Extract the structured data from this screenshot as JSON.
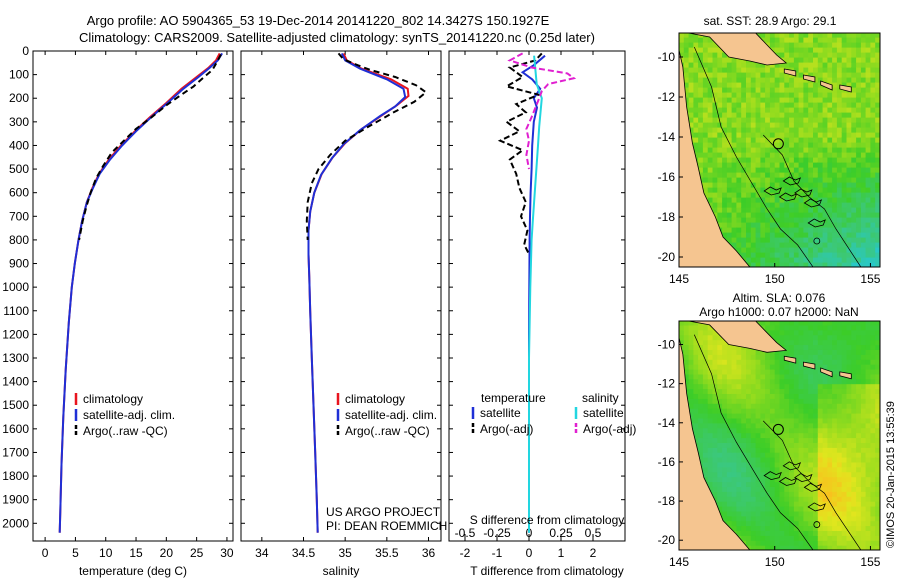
{
  "header": {
    "title_line1": "Argo profile: AO 5904365_53 19-Dec-2014 20141220_802 14.3427S 150.1927E",
    "title_line2": "Climatology: CARS2009. Satellite-adjusted climatology: synTS_20141220.nc (0.25d later)"
  },
  "colors": {
    "climatology": "#e8141e",
    "satellite": "#1f2fd6",
    "argo": "#000000",
    "satellite_salinity": "#22d6e0",
    "argo_salinity": "#e020d0",
    "land": "#f5c590"
  },
  "chart_data": [
    {
      "type": "line",
      "name": "temperature-profile",
      "xlabel": "temperature (deg C)",
      "xlim": [
        -2,
        31
      ],
      "ylim": [
        0,
        2075
      ],
      "xticks": [
        0,
        5,
        10,
        15,
        20,
        25,
        30
      ],
      "yticks": [
        0,
        100,
        200,
        300,
        400,
        500,
        600,
        700,
        800,
        900,
        1000,
        1100,
        1200,
        1300,
        1400,
        1500,
        1600,
        1700,
        1800,
        1900,
        2000
      ],
      "legend": [
        "climatology",
        "satellite-adj. clim.",
        "Argo(..raw -QC)"
      ],
      "series": [
        {
          "name": "climatology",
          "color": "#e8141e",
          "dash": "",
          "points": [
            [
              28.8,
              10
            ],
            [
              28.2,
              40
            ],
            [
              27,
              70
            ],
            [
              25,
              110
            ],
            [
              22.5,
              160
            ],
            [
              20,
              220
            ],
            [
              17.3,
              280
            ],
            [
              14.8,
              340
            ],
            [
              12.5,
              400
            ],
            [
              10.5,
              460
            ],
            [
              8.9,
              520
            ],
            [
              7.8,
              580
            ],
            [
              6.9,
              640
            ],
            [
              6.1,
              720
            ],
            [
              5.5,
              800
            ],
            [
              4.9,
              900
            ],
            [
              4.4,
              1000
            ],
            [
              3.9,
              1150
            ],
            [
              3.4,
              1350
            ],
            [
              3.0,
              1550
            ],
            [
              2.7,
              1750
            ],
            [
              2.5,
              1950
            ],
            [
              2.4,
              2040
            ]
          ]
        },
        {
          "name": "satellite-adj. clim.",
          "color": "#1f2fd6",
          "dash": "",
          "points": [
            [
              29.2,
              10
            ],
            [
              28.5,
              40
            ],
            [
              27.2,
              70
            ],
            [
              25.3,
              110
            ],
            [
              22.8,
              160
            ],
            [
              20.2,
              220
            ],
            [
              17.5,
              280
            ],
            [
              15,
              340
            ],
            [
              12.7,
              400
            ],
            [
              10.7,
              460
            ],
            [
              9,
              520
            ],
            [
              7.9,
              580
            ],
            [
              6.9,
              640
            ],
            [
              6.1,
              720
            ],
            [
              5.5,
              800
            ],
            [
              4.9,
              900
            ],
            [
              4.4,
              1000
            ],
            [
              3.9,
              1150
            ],
            [
              3.4,
              1350
            ],
            [
              3.0,
              1550
            ],
            [
              2.7,
              1750
            ],
            [
              2.5,
              1950
            ],
            [
              2.4,
              2040
            ]
          ]
        },
        {
          "name": "Argo(..raw -QC)",
          "color": "#000000",
          "dash": "6,4",
          "points": [
            [
              29,
              15
            ],
            [
              28.4,
              45
            ],
            [
              27.6,
              80
            ],
            [
              26,
              115
            ],
            [
              24.5,
              150
            ],
            [
              22.2,
              190
            ],
            [
              20,
              230
            ],
            [
              17.6,
              280
            ],
            [
              15,
              330
            ],
            [
              13,
              380
            ],
            [
              11,
              430
            ],
            [
              9.5,
              490
            ],
            [
              8.4,
              540
            ],
            [
              7.5,
              600
            ],
            [
              6.8,
              660
            ],
            [
              6.2,
              720
            ],
            [
              5.6,
              800
            ]
          ]
        }
      ]
    },
    {
      "type": "line",
      "name": "salinity-profile",
      "xlabel": "salinity",
      "xlim": [
        33.75,
        36.15
      ],
      "ylim": [
        0,
        2075
      ],
      "xticks": [
        34,
        34.5,
        35,
        35.5,
        36
      ],
      "xtick_labels": [
        "34",
        "34.5",
        "35",
        "35.5",
        "36"
      ],
      "legend": [
        "climatology",
        "satellite-adj. clim.",
        "Argo(..raw -QC)"
      ],
      "annotations": [
        "US ARGO PROJECT",
        "PI: DEAN ROEMMICH"
      ],
      "series": [
        {
          "name": "climatology",
          "color": "#e8141e",
          "dash": "",
          "points": [
            [
              34.98,
              10
            ],
            [
              35.02,
              40
            ],
            [
              35.2,
              75
            ],
            [
              35.55,
              120
            ],
            [
              35.75,
              160
            ],
            [
              35.76,
              190
            ],
            [
              35.62,
              230
            ],
            [
              35.45,
              270
            ],
            [
              35.2,
              330
            ],
            [
              35.0,
              390
            ],
            [
              34.85,
              450
            ],
            [
              34.72,
              520
            ],
            [
              34.63,
              600
            ],
            [
              34.58,
              680
            ],
            [
              34.56,
              760
            ],
            [
              34.56,
              860
            ],
            [
              34.57,
              960
            ],
            [
              34.58,
              1100
            ],
            [
              34.6,
              1300
            ],
            [
              34.62,
              1500
            ],
            [
              34.64,
              1700
            ],
            [
              34.66,
              1900
            ],
            [
              34.67,
              2040
            ]
          ]
        },
        {
          "name": "satellite-adj. clim.",
          "color": "#1f2fd6",
          "dash": "",
          "points": [
            [
              34.96,
              10
            ],
            [
              35.0,
              40
            ],
            [
              35.18,
              75
            ],
            [
              35.5,
              120
            ],
            [
              35.7,
              160
            ],
            [
              35.72,
              195
            ],
            [
              35.6,
              235
            ],
            [
              35.42,
              275
            ],
            [
              35.18,
              335
            ],
            [
              34.98,
              395
            ],
            [
              34.84,
              455
            ],
            [
              34.71,
              525
            ],
            [
              34.63,
              600
            ],
            [
              34.58,
              680
            ],
            [
              34.56,
              760
            ],
            [
              34.56,
              860
            ],
            [
              34.57,
              960
            ],
            [
              34.58,
              1100
            ],
            [
              34.6,
              1300
            ],
            [
              34.62,
              1500
            ],
            [
              34.64,
              1700
            ],
            [
              34.66,
              1900
            ],
            [
              34.67,
              2040
            ]
          ]
        },
        {
          "name": "Argo(..raw -QC)",
          "color": "#000000",
          "dash": "6,4",
          "points": [
            [
              34.92,
              10
            ],
            [
              34.98,
              35
            ],
            [
              35.15,
              60
            ],
            [
              35.3,
              80
            ],
            [
              35.6,
              110
            ],
            [
              35.85,
              145
            ],
            [
              35.97,
              175
            ],
            [
              35.83,
              215
            ],
            [
              35.58,
              260
            ],
            [
              35.28,
              320
            ],
            [
              35.0,
              380
            ],
            [
              34.82,
              440
            ],
            [
              34.68,
              500
            ],
            [
              34.6,
              560
            ],
            [
              34.55,
              640
            ],
            [
              34.54,
              720
            ],
            [
              34.55,
              800
            ]
          ]
        }
      ]
    },
    {
      "type": "line",
      "name": "difference-profile",
      "xlabel": "T difference from climatology",
      "xlabel_top": "S difference from climatology",
      "xlim": [
        -2.5,
        3.0
      ],
      "ylim": [
        0,
        2075
      ],
      "xticks": [
        -2,
        -1,
        0,
        1,
        2
      ],
      "s_xticks": [
        -0.5,
        -0.25,
        0,
        0.25,
        0.5
      ],
      "s_xtick_labels": [
        "-0.5",
        "-0.25",
        "0",
        "0.25",
        "0.5"
      ],
      "legend_headers": [
        "temperature",
        "salinity"
      ],
      "legend": [
        "satellite",
        "Argo(-adj)",
        "satellite",
        "Argo(-adj)"
      ],
      "series": [
        {
          "name": "temperature satellite",
          "color": "#1f2fd6",
          "dash": "",
          "points": [
            [
              0.5,
              20
            ],
            [
              0.15,
              60
            ],
            [
              -0.2,
              90
            ],
            [
              0.1,
              120
            ],
            [
              0.35,
              160
            ],
            [
              0.15,
              200
            ],
            [
              0.25,
              240
            ],
            [
              0.15,
              300
            ],
            [
              0.1,
              400
            ],
            [
              0.08,
              500
            ],
            [
              0.05,
              600
            ],
            [
              0.03,
              700
            ],
            [
              0.02,
              800
            ],
            [
              0.01,
              1000
            ],
            [
              0,
              1200
            ],
            [
              0,
              1500
            ],
            [
              0,
              1800
            ],
            [
              0,
              2040
            ]
          ]
        },
        {
          "name": "temperature Argo(-adj)",
          "color": "#000000",
          "dash": "6,3",
          "points": [
            [
              0.4,
              10
            ],
            [
              0.2,
              40
            ],
            [
              -0.6,
              70
            ],
            [
              -0.2,
              110
            ],
            [
              -0.7,
              150
            ],
            [
              0.3,
              185
            ],
            [
              -0.4,
              225
            ],
            [
              -0.1,
              260
            ],
            [
              -0.7,
              300
            ],
            [
              -0.3,
              340
            ],
            [
              -0.9,
              380
            ],
            [
              -0.2,
              420
            ],
            [
              -0.6,
              460
            ],
            [
              -0.4,
              520
            ],
            [
              -0.3,
              580
            ],
            [
              -0.1,
              640
            ],
            [
              -0.25,
              700
            ],
            [
              -0.05,
              760
            ],
            [
              -0.15,
              820
            ],
            [
              0,
              860
            ]
          ]
        },
        {
          "name": "salinity satellite",
          "color": "#22d6e0",
          "dash": "",
          "points": [
            [
              0.04,
              20
            ],
            [
              0.05,
              80
            ],
            [
              0.06,
              140
            ],
            [
              0.1,
              200
            ],
            [
              0.09,
              260
            ],
            [
              0.08,
              320
            ],
            [
              0.07,
              400
            ],
            [
              0.06,
              480
            ],
            [
              0.05,
              560
            ],
            [
              0.04,
              640
            ],
            [
              0.03,
              720
            ],
            [
              0.02,
              800
            ],
            [
              0.01,
              1000
            ],
            [
              0,
              1300
            ],
            [
              0,
              1600
            ],
            [
              0,
              2040
            ]
          ]
        },
        {
          "name": "salinity Argo(-adj)",
          "color": "#e020d0",
          "dash": "6,3",
          "points": [
            [
              -0.05,
              10
            ],
            [
              -0.15,
              40
            ],
            [
              0.02,
              70
            ],
            [
              0.3,
              95
            ],
            [
              0.35,
              115
            ],
            [
              0.15,
              140
            ],
            [
              0.1,
              170
            ],
            [
              0.08,
              200
            ],
            [
              0.05,
              240
            ],
            [
              0.02,
              280
            ],
            [
              -0.02,
              330
            ],
            [
              0.0,
              380
            ],
            [
              -0.02,
              440
            ],
            [
              0.0,
              500
            ]
          ]
        }
      ]
    },
    {
      "type": "heatmap",
      "name": "sst-map",
      "title": "sat. SST: 28.9  Argo: 29.1",
      "xlim": [
        145,
        155.5
      ],
      "ylim": [
        -20.5,
        -8.8
      ],
      "xticks": [
        145,
        150,
        155
      ],
      "yticks": [
        -10,
        -12,
        -14,
        -16,
        -18,
        -20
      ],
      "argo_marker": [
        150.19,
        -14.34
      ]
    },
    {
      "type": "heatmap",
      "name": "sla-map",
      "title_line1": "Altim. SLA: 0.076",
      "title_line2": "Argo h1000: 0.07 h2000: NaN",
      "xlim": [
        145,
        155.5
      ],
      "ylim": [
        -20.5,
        -8.8
      ],
      "xticks": [
        145,
        150,
        155
      ],
      "yticks": [
        -10,
        -12,
        -14,
        -16,
        -18,
        -20
      ],
      "argo_marker": [
        150.19,
        -14.34
      ],
      "credit": "©IMOS 20-Jan-2015 13:55:39"
    }
  ]
}
